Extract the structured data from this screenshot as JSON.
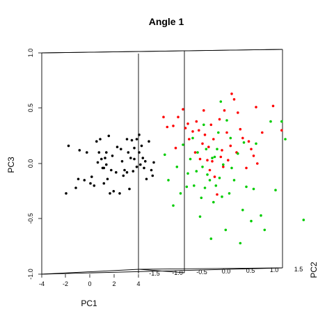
{
  "chart_data": {
    "type": "scatter",
    "title": "Angle 1",
    "xlabel": "PC1",
    "ylabel": "PC3",
    "zlabel": "PC2",
    "projection": "3d",
    "x_ticks": [
      "-4",
      "-2",
      "0",
      "2",
      "4"
    ],
    "y_ticks": [
      "-1.0",
      "-0.5",
      "0.0",
      "0.5",
      "1.0"
    ],
    "z_ticks": [
      "-1.5",
      "-1.0",
      "-0.5",
      "0.0",
      "0.5",
      "1.0",
      "1.5"
    ],
    "grid": false,
    "legend": "none",
    "series": [
      {
        "color": "#000000",
        "points": [
          [
            -2,
            -0.27
          ],
          [
            -1.8,
            0.16
          ],
          [
            -1.2,
            -0.22
          ],
          [
            -1.0,
            -0.14
          ],
          [
            -0.9,
            0.12
          ],
          [
            -0.5,
            -0.15
          ],
          [
            -0.3,
            0.1
          ],
          [
            0,
            -0.18
          ],
          [
            0.1,
            -0.12
          ],
          [
            0.3,
            -0.2
          ],
          [
            0.5,
            0.2
          ],
          [
            0.6,
            0.01
          ],
          [
            0.7,
            0.1
          ],
          [
            0.8,
            0.22
          ],
          [
            0.9,
            0.04
          ],
          [
            1.0,
            -0.04
          ],
          [
            1.1,
            -0.18
          ],
          [
            1.1,
            -0.04
          ],
          [
            1.2,
            0.05
          ],
          [
            1.3,
            -0.01
          ],
          [
            1.3,
            0.1
          ],
          [
            1.4,
            -0.14
          ],
          [
            1.5,
            0.25
          ],
          [
            1.6,
            -0.27
          ],
          [
            1.7,
            -0.06
          ],
          [
            1.8,
            0.07
          ],
          [
            1.9,
            -0.25
          ],
          [
            2.1,
            -0.08
          ],
          [
            2.2,
            0.15
          ],
          [
            2.4,
            -0.27
          ],
          [
            2.5,
            0.13
          ],
          [
            2.6,
            0.02
          ],
          [
            2.7,
            -0.11
          ],
          [
            2.8,
            -0.06
          ],
          [
            3.0,
            -0.08
          ],
          [
            3.0,
            0.22
          ],
          [
            3.1,
            0.1
          ],
          [
            3.2,
            -0.23
          ],
          [
            3.3,
            0.05
          ],
          [
            3.4,
            0.21
          ],
          [
            3.5,
            -0.07
          ],
          [
            3.6,
            0.14
          ],
          [
            3.6,
            0.04
          ],
          [
            3.8,
            0.22
          ],
          [
            3.8,
            -0.03
          ],
          [
            4.0,
            0.26
          ],
          [
            4.0,
            0.1
          ],
          [
            4.1,
            -0.01
          ],
          [
            4.2,
            0.16
          ],
          [
            4.3,
            0.05
          ],
          [
            4.4,
            -0.04
          ],
          [
            4.5,
            0.02
          ],
          [
            4.6,
            -0.14
          ],
          [
            4.8,
            0.2
          ],
          [
            5.0,
            -0.06
          ],
          [
            5.1,
            -0.11
          ],
          [
            5.2,
            0.01
          ]
        ]
      },
      {
        "color": "#ff0000",
        "points": [
          [
            6.0,
            0.42
          ],
          [
            6.3,
            0.33
          ],
          [
            6.8,
            0.34
          ],
          [
            7.2,
            0.42
          ],
          [
            7.6,
            0.49
          ],
          [
            7.0,
            0.14
          ],
          [
            7.8,
            0.32
          ],
          [
            8.0,
            0.36
          ],
          [
            8.1,
            0.22
          ],
          [
            8.4,
            0.29
          ],
          [
            8.6,
            0.1
          ],
          [
            8.7,
            0.38
          ],
          [
            8.9,
            0.3
          ],
          [
            9.0,
            0.04
          ],
          [
            9.2,
            0.18
          ],
          [
            9.3,
            0.48
          ],
          [
            9.4,
            0.26
          ],
          [
            9.6,
            0.03
          ],
          [
            9.7,
            0.15
          ],
          [
            9.8,
            -0.06
          ],
          [
            9.9,
            0.35
          ],
          [
            10.0,
            0.02
          ],
          [
            10.1,
            0.22
          ],
          [
            10.2,
            -0.12
          ],
          [
            10.4,
            -0.28
          ],
          [
            10.6,
            0.4
          ],
          [
            10.7,
            0.06
          ],
          [
            10.8,
            0.12
          ],
          [
            10.9,
            -0.03
          ],
          [
            11.0,
            0.48
          ],
          [
            11.2,
            0.28
          ],
          [
            11.3,
            0.03
          ],
          [
            11.5,
            0.16
          ],
          [
            11.6,
            0.63
          ],
          [
            11.8,
            0.58
          ],
          [
            12.0,
            0.1
          ],
          [
            12.1,
            0.46
          ],
          [
            12.3,
            0.31
          ],
          [
            12.5,
            0.23
          ],
          [
            12.8,
            -0.04
          ],
          [
            13.0,
            0.2
          ],
          [
            13.2,
            0.13
          ],
          [
            13.4,
            0.07
          ],
          [
            13.6,
            0.51
          ],
          [
            13.7,
            0.0
          ],
          [
            14.1,
            0.28
          ],
          [
            15.0,
            0.52
          ],
          [
            15.7,
            0.3
          ]
        ]
      },
      {
        "color": "#00cc00",
        "points": [
          [
            6.1,
            0.08
          ],
          [
            6.4,
            -0.15
          ],
          [
            6.8,
            -0.38
          ],
          [
            7.1,
            -0.03
          ],
          [
            7.4,
            -0.27
          ],
          [
            7.6,
            0.17
          ],
          [
            7.9,
            -0.21
          ],
          [
            8.0,
            -0.09
          ],
          [
            8.2,
            0.04
          ],
          [
            8.4,
            0.23
          ],
          [
            8.5,
            -0.2
          ],
          [
            8.7,
            -0.07
          ],
          [
            8.8,
            0.1
          ],
          [
            9.0,
            -0.48
          ],
          [
            9.1,
            -0.31
          ],
          [
            9.2,
            -0.03
          ],
          [
            9.3,
            0.35
          ],
          [
            9.4,
            -0.22
          ],
          [
            9.5,
            0.13
          ],
          [
            9.6,
            -0.1
          ],
          [
            9.8,
            -0.15
          ],
          [
            9.9,
            -0.68
          ],
          [
            10.0,
            0.05
          ],
          [
            10.1,
            -0.35
          ],
          [
            10.2,
            0.06
          ],
          [
            10.3,
            -0.2
          ],
          [
            10.4,
            0.13
          ],
          [
            10.5,
            0.28
          ],
          [
            10.6,
            -0.13
          ],
          [
            10.7,
            0.56
          ],
          [
            10.8,
            -0.3
          ],
          [
            10.9,
            -0.01
          ],
          [
            11.1,
            -0.6
          ],
          [
            11.2,
            0.39
          ],
          [
            11.4,
            -0.27
          ],
          [
            11.5,
            0.23
          ],
          [
            11.6,
            -0.04
          ],
          [
            11.8,
            -0.15
          ],
          [
            12.1,
            0.09
          ],
          [
            12.3,
            -0.72
          ],
          [
            12.5,
            -0.42
          ],
          [
            12.6,
            0.19
          ],
          [
            12.8,
            -0.21
          ],
          [
            13.2,
            -0.52
          ],
          [
            13.4,
            -0.23
          ],
          [
            13.6,
            0.18
          ],
          [
            14.0,
            -0.47
          ],
          [
            14.3,
            -0.6
          ],
          [
            14.8,
            0.38
          ],
          [
            15.2,
            -0.24
          ],
          [
            15.7,
            0.38
          ],
          [
            16.0,
            0.22
          ],
          [
            17.5,
            -0.51
          ]
        ]
      }
    ]
  }
}
